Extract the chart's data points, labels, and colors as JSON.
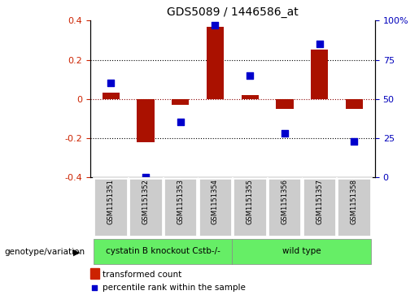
{
  "title": "GDS5089 / 1446586_at",
  "samples": [
    "GSM1151351",
    "GSM1151352",
    "GSM1151353",
    "GSM1151354",
    "GSM1151355",
    "GSM1151356",
    "GSM1151357",
    "GSM1151358"
  ],
  "transformed_count": [
    0.03,
    -0.22,
    -0.03,
    0.37,
    0.02,
    -0.05,
    0.25,
    -0.05
  ],
  "percentile_rank": [
    60,
    0,
    35,
    97,
    65,
    28,
    85,
    23
  ],
  "bar_color": "#aa1100",
  "dot_color": "#0000cc",
  "ylim_left": [
    -0.4,
    0.4
  ],
  "ylim_right": [
    0,
    100
  ],
  "yticks_left": [
    -0.4,
    -0.2,
    0.0,
    0.2,
    0.4
  ],
  "yticks_right": [
    0,
    25,
    50,
    75,
    100
  ],
  "ytick_labels_right": [
    "0",
    "25",
    "50",
    "75",
    "100%"
  ],
  "group1_label": "cystatin B knockout Cstb-/-",
  "group2_label": "wild type",
  "group1_count": 4,
  "group2_count": 4,
  "group_color": "#66ee66",
  "group_label_prefix": "genotype/variation",
  "legend_bar_label": "transformed count",
  "legend_dot_label": "percentile rank within the sample",
  "bar_color_legend": "#cc2200",
  "dot_color_legend": "#0000cc",
  "bar_width": 0.5,
  "dot_size": 35,
  "left_tick_color": "#cc2200",
  "right_tick_color": "#0000bb"
}
